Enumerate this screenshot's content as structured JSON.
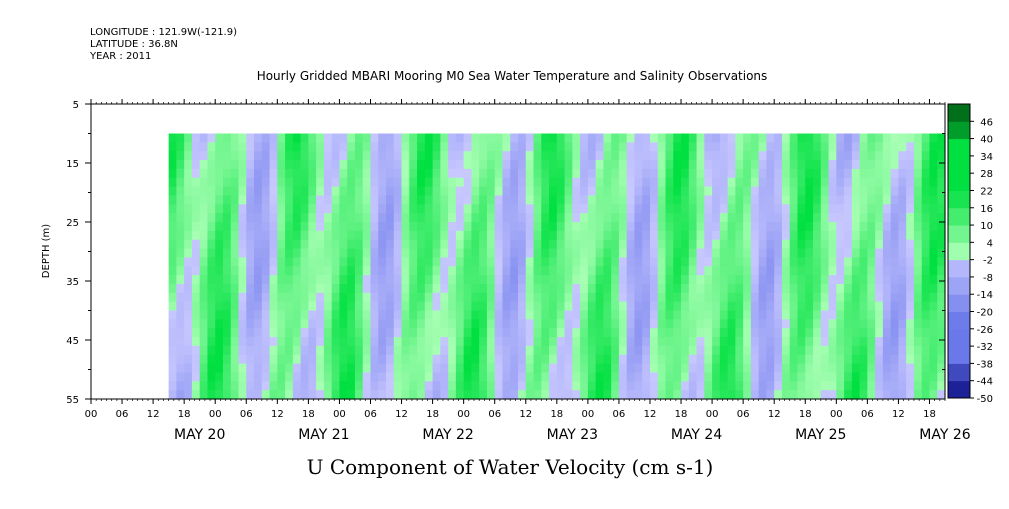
{
  "header": {
    "longitude": "LONGITUDE : 121.9W(-121.9)",
    "latitude": "LATITUDE : 36.8N",
    "year": "YEAR : 2011"
  },
  "chart_data": {
    "type": "heatmap",
    "title": "Hourly Gridded MBARI Mooring M0 Sea Water Temperature and Salinity Observations",
    "xlabel": "U Component of Water Velocity (cm s-1)",
    "ylabel": "DEPTH (m)",
    "y_ticks": [
      "5",
      "15",
      "25",
      "35",
      "45",
      "55"
    ],
    "y_range": [
      5,
      55
    ],
    "y_inverted": true,
    "hour_ticks": [
      "00",
      "06",
      "12",
      "18",
      "00",
      "06",
      "12",
      "18",
      "00",
      "06",
      "12",
      "18",
      "00",
      "06",
      "12",
      "18",
      "00",
      "06",
      "12",
      "18",
      "00",
      "06",
      "12",
      "18",
      "00",
      "06",
      "12",
      "18"
    ],
    "day_labels": [
      "MAY 20",
      "MAY 21",
      "MAY 22",
      "MAY 23",
      "MAY 24",
      "MAY 25",
      "MAY 26"
    ],
    "x_range_hours": [
      -12,
      153
    ],
    "data_start_hour": 3,
    "data_end_hour": 153,
    "data_depth_top": 10,
    "data_depth_bottom": 55,
    "colorbar_labels": [
      "46",
      "40",
      "34",
      "28",
      "22",
      "16",
      "10",
      "4",
      "-2",
      "-8",
      "-14",
      "-20",
      "-26",
      "-32",
      "-38",
      "-44",
      "-50"
    ],
    "colorbar_range": [
      -50,
      52
    ],
    "colors": {
      "positive_peak": "#00e040",
      "positive_light": "#a8ffb4",
      "negative_light": "#c8c8ff",
      "negative_peak": "#6a78ea"
    }
  }
}
